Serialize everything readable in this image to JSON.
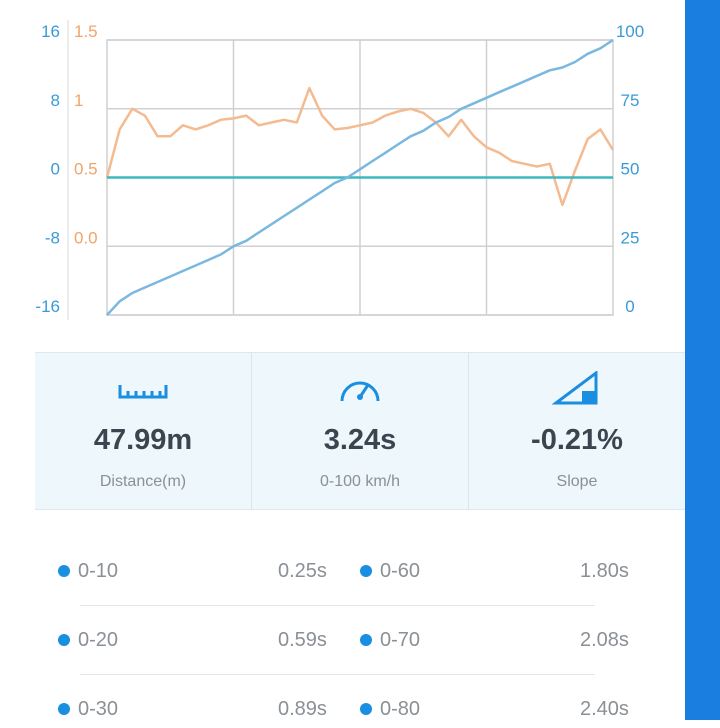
{
  "chart_data": {
    "type": "line",
    "ylim": [
      -16,
      16
    ],
    "yticks": [
      16,
      8,
      0,
      -8,
      -16
    ],
    "y2lim": [
      0,
      100
    ],
    "y2ticks": [
      100,
      75,
      50,
      25,
      0
    ],
    "y3lim": [
      -0.5,
      1.5
    ],
    "y3ticks": [
      1.5,
      1,
      0.5,
      {
        "value": 0,
        "label": "0.0"
      }
    ],
    "grid": true,
    "series": [
      {
        "color": "#f5bb90",
        "axis": "y3",
        "values": [
          0.5,
          0.85,
          1.0,
          0.95,
          0.8,
          0.8,
          0.88,
          0.85,
          0.88,
          0.92,
          0.93,
          0.95,
          0.88,
          0.9,
          0.92,
          0.9,
          1.15,
          0.95,
          0.85,
          0.86,
          0.88,
          0.9,
          0.95,
          0.98,
          1.0,
          0.97,
          0.9,
          0.8,
          0.92,
          0.8,
          0.72,
          0.68,
          0.62,
          0.6,
          0.58,
          0.6,
          0.3,
          0.55,
          0.78,
          0.85,
          0.7
        ]
      },
      {
        "color": "#3bb8c0",
        "axis": "y",
        "values": [
          0,
          0,
          0,
          0,
          0,
          0,
          0,
          0,
          0,
          0,
          0,
          0,
          0,
          0,
          0,
          0,
          0,
          0,
          0,
          0,
          0,
          0,
          0,
          0,
          0,
          0,
          0,
          0,
          0,
          0,
          0,
          0,
          0,
          0,
          0,
          0,
          0,
          0,
          0,
          0,
          0
        ]
      },
      {
        "color": "#7ab8e0",
        "axis": "y2",
        "values": [
          0,
          5,
          8,
          10,
          12,
          14,
          16,
          18,
          20,
          22,
          25,
          27,
          30,
          33,
          36,
          39,
          42,
          45,
          48,
          50,
          53,
          56,
          59,
          62,
          65,
          67,
          70,
          72,
          75,
          77,
          79,
          81,
          83,
          85,
          87,
          89,
          90,
          92,
          95,
          97,
          100
        ]
      }
    ]
  },
  "stats": [
    {
      "value": "47.99m",
      "label": "Distance(m)"
    },
    {
      "value": "3.24s",
      "label": "0-100 km/h"
    },
    {
      "value": "-0.21%",
      "label": "Slope"
    }
  ],
  "splits": [
    [
      {
        "range": "0-10",
        "time": "0.25s"
      },
      {
        "range": "0-60",
        "time": "1.80s"
      }
    ],
    [
      {
        "range": "0-20",
        "time": "0.59s"
      },
      {
        "range": "0-70",
        "time": "2.08s"
      }
    ],
    [
      {
        "range": "0-30",
        "time": "0.89s"
      },
      {
        "range": "0-80",
        "time": "2.40s"
      }
    ]
  ]
}
